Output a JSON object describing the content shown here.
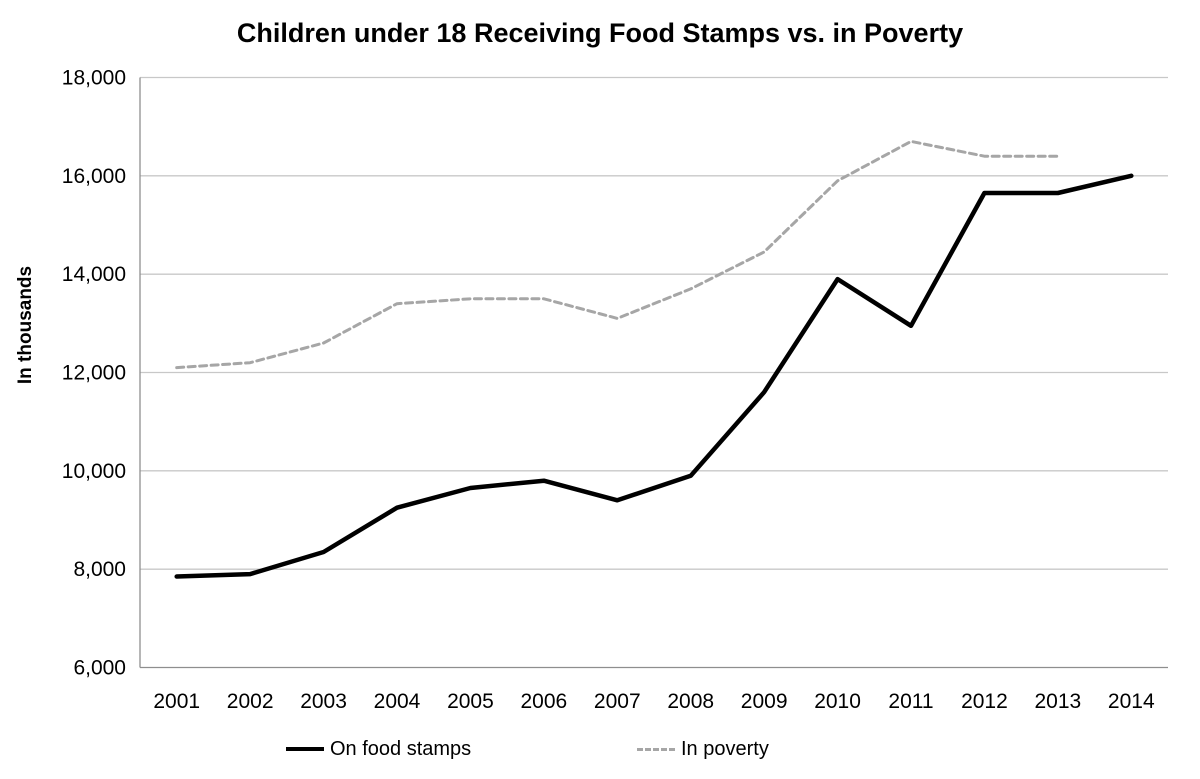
{
  "chart_data": {
    "type": "line",
    "title": "Children under 18 Receiving Food Stamps vs. in Poverty",
    "xlabel": "",
    "ylabel": "In thousands",
    "ylim": [
      6000,
      18000
    ],
    "grid": true,
    "legend_position": "bottom",
    "categories": [
      "2001",
      "2002",
      "2003",
      "2004",
      "2005",
      "2006",
      "2007",
      "2008",
      "2009",
      "2010",
      "2011",
      "2012",
      "2013",
      "2014"
    ],
    "y_tick_labels": [
      "6,000",
      "8,000",
      "10,000",
      "12,000",
      "14,000",
      "16,000",
      "18,000"
    ],
    "series": [
      {
        "name": "On food stamps",
        "style": "solid",
        "color": "#000000",
        "width": 4.5,
        "values": [
          7850,
          7900,
          8350,
          9250,
          9650,
          9800,
          9400,
          9900,
          11600,
          13900,
          12950,
          15650,
          15650,
          16000
        ]
      },
      {
        "name": "In poverty",
        "style": "dashed",
        "color": "#a6a6a6",
        "width": 3,
        "values": [
          12100,
          12200,
          12600,
          13400,
          13500,
          13500,
          13100,
          13700,
          14450,
          15900,
          16700,
          16400,
          16400,
          null
        ]
      }
    ],
    "colors": {
      "grid": "#c8c8c8",
      "axis": "#8e8e8e",
      "title_text": "#000000"
    }
  }
}
